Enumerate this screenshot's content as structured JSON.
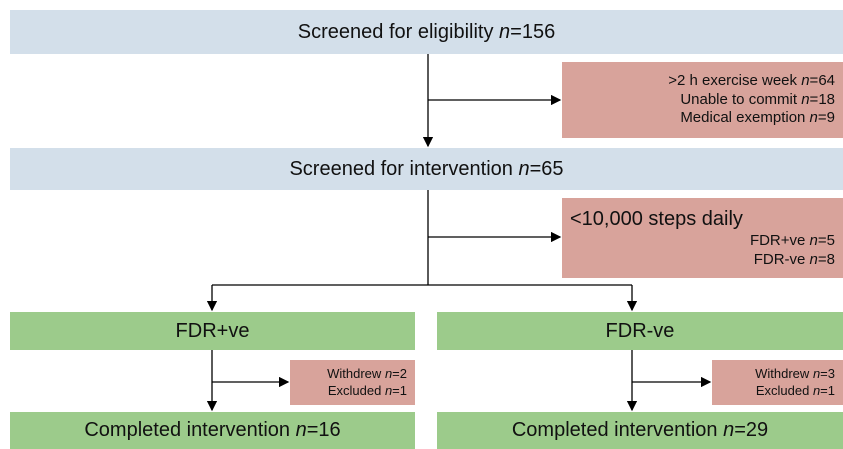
{
  "notation": {
    "var": "n",
    "eq": "="
  },
  "nodes": [
    {
      "lines": [
        {
          "text": "Screened for eligibility",
          "n": 156
        }
      ]
    },
    {
      "lines": [
        {
          "text": ">2 h exercise week",
          "n": 64
        },
        {
          "text": "Unable to commit",
          "n": 18
        },
        {
          "text": "Medical exemption",
          "n": 9
        }
      ]
    },
    {
      "lines": [
        {
          "text": "Screened for intervention",
          "n": 65
        }
      ]
    },
    {
      "heading": "<10,000 steps daily",
      "lines": [
        {
          "text": "FDR+ve",
          "n": 5
        },
        {
          "text": "FDR-ve",
          "n": 8
        }
      ]
    },
    {
      "heading": "FDR+ve"
    },
    {
      "heading": "FDR-ve"
    },
    {
      "lines": [
        {
          "text": "Withdrew",
          "n": 2
        },
        {
          "text": "Excluded",
          "n": 1
        }
      ]
    },
    {
      "lines": [
        {
          "text": "Withdrew",
          "n": 3
        },
        {
          "text": "Excluded",
          "n": 1
        }
      ]
    },
    {
      "lines": [
        {
          "text": "Completed intervention",
          "n": 16
        }
      ]
    },
    {
      "lines": [
        {
          "text": "Completed intervention",
          "n": 29
        }
      ]
    }
  ]
}
